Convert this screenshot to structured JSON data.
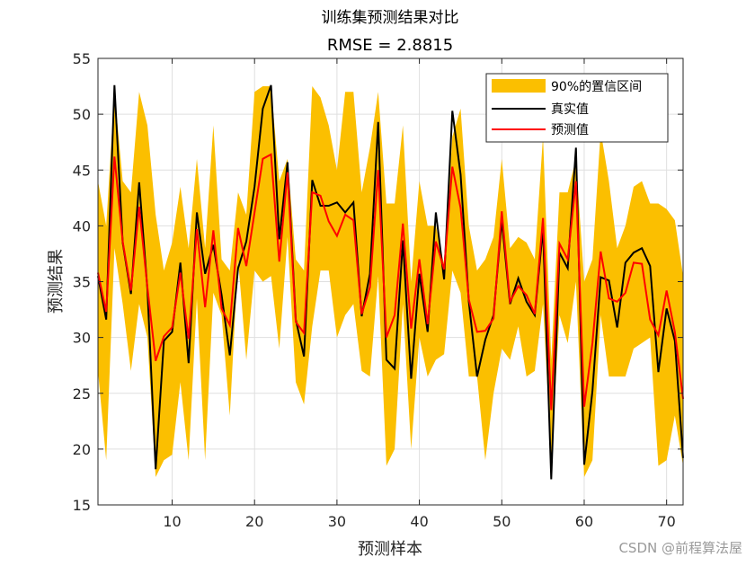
{
  "chart_data": {
    "type": "line",
    "title": "训练集预测结果对比",
    "subtitle": "RMSE = 2.8815",
    "xlabel": "预测样本",
    "ylabel": "预测结果",
    "xlim": [
      1,
      72
    ],
    "ylim": [
      15,
      55
    ],
    "xticks": [
      10,
      20,
      30,
      40,
      50,
      60,
      70
    ],
    "yticks": [
      15,
      20,
      25,
      30,
      35,
      40,
      45,
      50,
      55
    ],
    "grid": true,
    "legend_position": "top-right",
    "x": [
      1,
      2,
      3,
      4,
      5,
      6,
      7,
      8,
      9,
      10,
      11,
      12,
      13,
      14,
      15,
      16,
      17,
      18,
      19,
      20,
      21,
      22,
      23,
      24,
      25,
      26,
      27,
      28,
      29,
      30,
      31,
      32,
      33,
      34,
      35,
      36,
      37,
      38,
      39,
      40,
      41,
      42,
      43,
      44,
      45,
      46,
      47,
      48,
      49,
      50,
      51,
      52,
      53,
      54,
      55,
      56,
      57,
      58,
      59,
      60,
      61,
      62,
      63,
      64,
      65,
      66,
      67,
      68,
      69,
      70,
      71,
      72
    ],
    "series": [
      {
        "name": "90%的置信区间",
        "kind": "band",
        "color": "#fbbf00",
        "upper": [
          44,
          40,
          52,
          44,
          43,
          52,
          49,
          41,
          36,
          38.5,
          43.5,
          38,
          46,
          38,
          49,
          37,
          36,
          43,
          41,
          52,
          52.5,
          52.5,
          44,
          46,
          37,
          36,
          52.5,
          51.5,
          49,
          45,
          52,
          52,
          43,
          47,
          52,
          42,
          42,
          49,
          35,
          44,
          40,
          40,
          36.5,
          48,
          50.5,
          40,
          36,
          37,
          39,
          46,
          38,
          39,
          38.5,
          37,
          48,
          28,
          43,
          43,
          46,
          35,
          37,
          48.5,
          44,
          38,
          40,
          43.5,
          44,
          42,
          42,
          41.5,
          40.5,
          35.5
        ],
        "lower": [
          27,
          19,
          38,
          33,
          27,
          33,
          30,
          17.5,
          19,
          19.5,
          26,
          19,
          33.5,
          19,
          34,
          32,
          23,
          37,
          28,
          36,
          35,
          35.5,
          29,
          39,
          26,
          24,
          31,
          36,
          36,
          30,
          32,
          33,
          27,
          26.5,
          35.5,
          18.5,
          20,
          33,
          20,
          30,
          26.5,
          28,
          28.5,
          36,
          34,
          26.5,
          26.5,
          19,
          25,
          29,
          28,
          31,
          26.5,
          27,
          33,
          19,
          32,
          29.5,
          35,
          17.5,
          19,
          32,
          26.5,
          26.5,
          26.5,
          29,
          29.5,
          30,
          18.5,
          19,
          23,
          18.5
        ]
      },
      {
        "name": "真实值",
        "color": "#000000",
        "values": [
          35.5,
          31.6,
          52.6,
          38.5,
          33.9,
          43.9,
          34.3,
          18.2,
          29.7,
          30.5,
          36.7,
          27.7,
          41.2,
          35.7,
          38.3,
          33.8,
          28.4,
          36.2,
          38.6,
          43.5,
          50.5,
          52.6,
          38.8,
          45.7,
          31.6,
          28.3,
          44.1,
          41.8,
          41.8,
          42.1,
          41.2,
          42.1,
          31.9,
          35.7,
          49.3,
          28,
          27.2,
          38.7,
          26.3,
          35.7,
          30.5,
          41.2,
          35.2,
          50.3,
          44.6,
          33.2,
          26.5,
          29.8,
          32,
          40.5,
          33,
          35.3,
          33.2,
          32,
          39.8,
          17.3,
          37.6,
          36.2,
          47,
          18.6,
          25.2,
          35.4,
          35.1,
          30.9,
          36.7,
          37.6,
          38,
          36.4,
          26.9,
          32.6,
          29.7,
          19.2
        ]
      },
      {
        "name": "预测值",
        "color": "#ff0000",
        "values": [
          35.8,
          32.3,
          46.2,
          38.6,
          34.2,
          41.7,
          34.5,
          27.9,
          30.1,
          30.9,
          35.8,
          29.9,
          39.7,
          32.7,
          39.6,
          32.6,
          31.1,
          39.8,
          36.4,
          41.2,
          46,
          46.4,
          36.8,
          44.8,
          31.4,
          30.4,
          43,
          42.7,
          40.4,
          39.1,
          41,
          40.5,
          32.1,
          34.5,
          45,
          30,
          32,
          40.2,
          30.8,
          37,
          31.2,
          38.6,
          36.1,
          45.3,
          41.6,
          33.4,
          30.5,
          30.6,
          31.7,
          41.3,
          33.2,
          34.6,
          33.8,
          32.1,
          40.7,
          23.5,
          38.4,
          37,
          44,
          23.8,
          29.5,
          37.7,
          33.5,
          33.2,
          34,
          36.7,
          36.6,
          31.6,
          30.2,
          34.2,
          30.5,
          24.5
        ]
      }
    ]
  },
  "watermark": "CSDN @前程算法屋"
}
